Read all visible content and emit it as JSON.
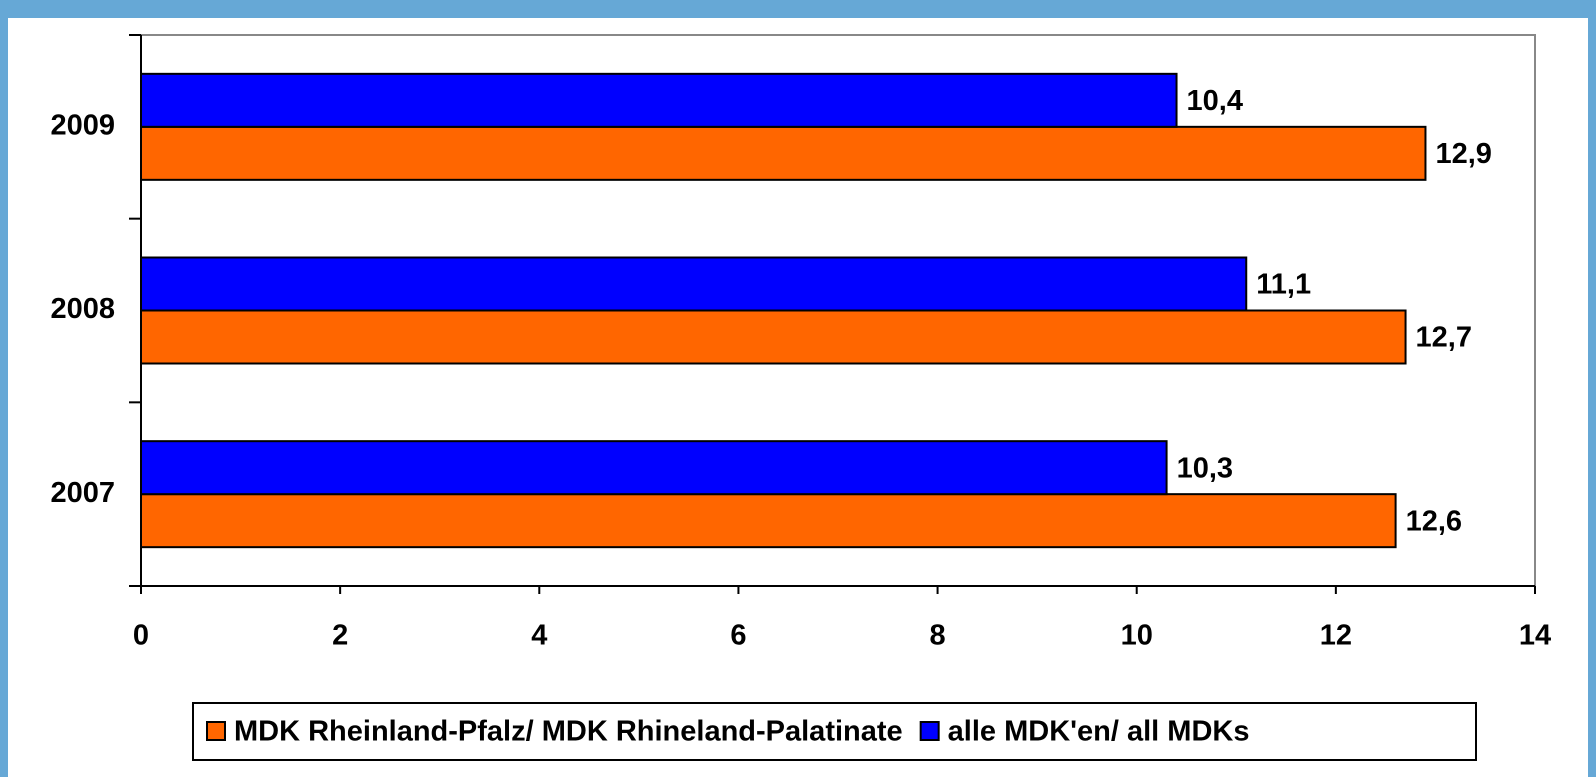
{
  "chart_data": {
    "type": "hbar",
    "categories": [
      "2007",
      "2008",
      "2009"
    ],
    "series": [
      {
        "name": "MDK Rheinland-Pfalz/ MDK Rhineland-Palatinate",
        "color": "#ff6600",
        "values": [
          12.6,
          12.7,
          12.9
        ],
        "value_labels": [
          "12,6",
          "12,7",
          "12,9"
        ]
      },
      {
        "name": "alle MDK'en/ all MDKs",
        "color": "#0000ff",
        "values": [
          10.3,
          11.1,
          10.4
        ],
        "value_labels": [
          "10,3",
          "11,1",
          "10,4"
        ]
      }
    ],
    "xlim": [
      0,
      14
    ],
    "xticks": [
      0,
      2,
      4,
      6,
      8,
      10,
      12,
      14
    ],
    "legend": "bottom"
  }
}
